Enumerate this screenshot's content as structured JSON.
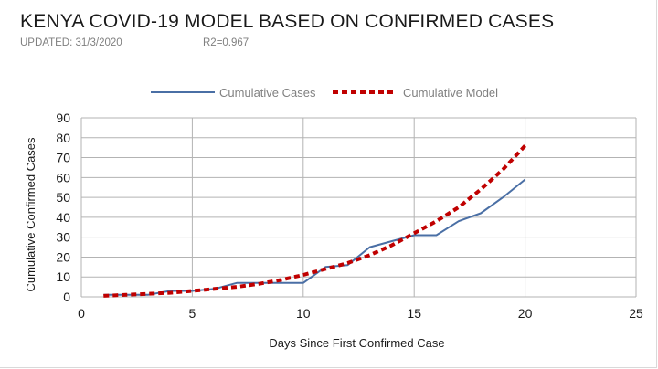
{
  "header": {
    "title": "KENYA COVID-19 MODEL BASED ON CONFIRMED CASES",
    "updated": "UPDATED: 31/3/2020",
    "r2": "R2=0.967"
  },
  "chart_data": {
    "type": "line",
    "title": "KENYA COVID-19 MODEL BASED ON CONFIRMED CASES",
    "subtitle": "UPDATED: 31/3/2020",
    "annotation": "R2=0.967",
    "xlabel": "Days Since First Confirmed Case",
    "ylabel": "Cumulative Confirmed Cases",
    "xlim": [
      0,
      25
    ],
    "ylim": [
      0,
      90
    ],
    "xticks": [
      0,
      5,
      10,
      15,
      20,
      25
    ],
    "yticks": [
      0,
      10,
      20,
      30,
      40,
      50,
      60,
      70,
      80,
      90
    ],
    "grid": true,
    "legend_position": "top-center",
    "series": [
      {
        "name": "Cumulative Cases",
        "color": "#4a6fa5",
        "style": "solid",
        "x": [
          1,
          2,
          3,
          4,
          5,
          6,
          7,
          8,
          9,
          10,
          11,
          12,
          13,
          14,
          15,
          16,
          17,
          18,
          19,
          20
        ],
        "y": [
          1,
          1,
          1,
          3,
          3,
          4,
          7,
          7,
          7,
          7,
          15,
          16,
          25,
          28,
          31,
          31,
          38,
          42,
          50,
          59
        ]
      },
      {
        "name": "Cumulative Model",
        "color": "#c00000",
        "style": "dashed",
        "x": [
          1,
          2,
          3,
          4,
          5,
          6,
          7,
          8,
          9,
          10,
          11,
          12,
          13,
          14,
          15,
          16,
          17,
          18,
          19,
          20
        ],
        "y": [
          0.5,
          1,
          1.5,
          2,
          3,
          4,
          5,
          6.5,
          8.5,
          11,
          14,
          17,
          21,
          26,
          32,
          38,
          45,
          54,
          64,
          76
        ]
      }
    ]
  }
}
